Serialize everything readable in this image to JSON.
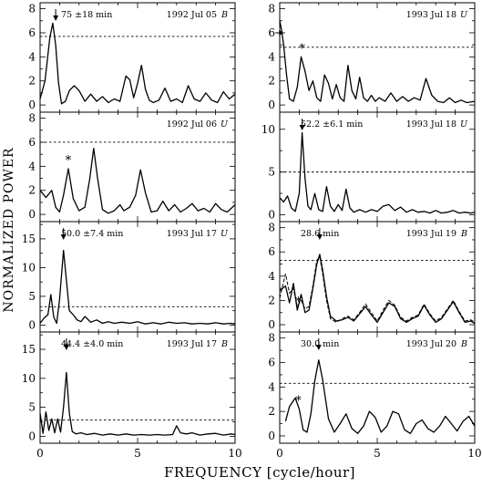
{
  "figure": {
    "ylabel": "NORMALIZED  POWER",
    "xlabel": "FREQUENCY [cycle/hour]"
  },
  "chart_data": [
    {
      "type": "line",
      "column": "left",
      "row": 0,
      "date": "1992 Jul 05",
      "filter": "B",
      "period": "75 ±18 min",
      "xlim": [
        0,
        10
      ],
      "ylim": [
        -0.6,
        8.5
      ],
      "yticks": [
        0,
        2,
        4,
        6,
        8
      ],
      "threshold": 5.7,
      "arrow_x": 0.8,
      "star_x": null,
      "series": [
        {
          "x": [
            0,
            0.25,
            0.5,
            0.65,
            0.8,
            0.95,
            1.1,
            1.3,
            1.5,
            1.75,
            2.0,
            2.3,
            2.6,
            2.9,
            3.2,
            3.5,
            3.8,
            4.1,
            4.4,
            4.6,
            4.8,
            5.0,
            5.2,
            5.4,
            5.6,
            5.8,
            6.1,
            6.4,
            6.7,
            7.0,
            7.3,
            7.6,
            7.9,
            8.2,
            8.5,
            8.8,
            9.1,
            9.4,
            9.7,
            10.0
          ],
          "y": [
            0.5,
            2.0,
            5.6,
            6.8,
            5.0,
            1.8,
            0.1,
            0.3,
            1.2,
            1.6,
            1.2,
            0.3,
            0.9,
            0.3,
            0.7,
            0.2,
            0.5,
            0.3,
            2.4,
            2.1,
            0.6,
            1.8,
            3.3,
            1.3,
            0.4,
            0.2,
            0.4,
            1.4,
            0.3,
            0.5,
            0.2,
            1.6,
            0.5,
            0.3,
            1.0,
            0.4,
            0.2,
            1.1,
            0.5,
            0.9
          ]
        }
      ]
    },
    {
      "type": "line",
      "column": "left",
      "row": 1,
      "date": "1992 Jul 06",
      "filter": "U",
      "period": "",
      "xlim": [
        0,
        10
      ],
      "ylim": [
        -0.6,
        8.5
      ],
      "yticks": [
        0,
        2,
        4,
        6,
        8
      ],
      "threshold": 6.0,
      "arrow_x": null,
      "star_x": 1.45,
      "series": [
        {
          "x": [
            0,
            0.3,
            0.6,
            0.8,
            1.0,
            1.2,
            1.45,
            1.7,
            2.0,
            2.3,
            2.55,
            2.75,
            2.95,
            3.2,
            3.5,
            3.8,
            4.1,
            4.3,
            4.6,
            4.9,
            5.15,
            5.4,
            5.7,
            6.0,
            6.3,
            6.6,
            6.9,
            7.2,
            7.5,
            7.8,
            8.1,
            8.4,
            8.7,
            9.0,
            9.3,
            9.6,
            10.0
          ],
          "y": [
            2.0,
            1.4,
            2.0,
            0.6,
            0.2,
            1.6,
            3.8,
            1.3,
            0.3,
            0.6,
            3.0,
            5.5,
            3.0,
            0.4,
            0.1,
            0.3,
            0.8,
            0.3,
            0.6,
            1.6,
            3.7,
            1.8,
            0.2,
            0.3,
            1.1,
            0.3,
            0.8,
            0.2,
            0.5,
            0.9,
            0.3,
            0.5,
            0.2,
            0.9,
            0.4,
            0.2,
            0.8
          ]
        }
      ]
    },
    {
      "type": "line",
      "column": "left",
      "row": 2,
      "date": "1993 Jul 17",
      "filter": "U",
      "period": "50.0 ±7.4 min",
      "xlim": [
        0,
        10
      ],
      "ylim": [
        -1.2,
        18
      ],
      "yticks": [
        0,
        5,
        10,
        15
      ],
      "threshold": 3.2,
      "arrow_x": 1.2,
      "star_x": null,
      "series": [
        {
          "x": [
            0,
            0.2,
            0.4,
            0.55,
            0.7,
            0.85,
            1.0,
            1.2,
            1.35,
            1.5,
            1.7,
            1.9,
            2.1,
            2.3,
            2.6,
            2.9,
            3.2,
            3.5,
            3.8,
            4.2,
            4.6,
            5.0,
            5.4,
            5.8,
            6.2,
            6.6,
            7.0,
            7.4,
            7.8,
            8.2,
            8.6,
            9.0,
            9.4,
            9.8,
            10.0
          ],
          "y": [
            0.3,
            1.2,
            1.8,
            5.3,
            1.4,
            0.3,
            4.5,
            13.0,
            7.8,
            2.5,
            1.8,
            0.9,
            0.6,
            1.5,
            0.5,
            0.9,
            0.3,
            0.6,
            0.3,
            0.5,
            0.3,
            0.6,
            0.2,
            0.4,
            0.2,
            0.5,
            0.3,
            0.4,
            0.2,
            0.3,
            0.2,
            0.4,
            0.2,
            0.3,
            0.2
          ]
        }
      ]
    },
    {
      "type": "line",
      "column": "left",
      "row": 3,
      "date": "1993 Jul 17",
      "filter": "B",
      "period": "44.4 ±4.0 min",
      "xlim": [
        0,
        10
      ],
      "ylim": [
        -1.2,
        18
      ],
      "yticks": [
        0,
        5,
        10,
        15
      ],
      "threshold": 2.8,
      "arrow_x": 1.35,
      "star_x": null,
      "series": [
        {
          "x": [
            0,
            0.15,
            0.3,
            0.45,
            0.6,
            0.75,
            0.9,
            1.05,
            1.2,
            1.35,
            1.5,
            1.65,
            1.85,
            2.1,
            2.4,
            2.8,
            3.2,
            3.6,
            4.0,
            4.4,
            4.8,
            5.2,
            5.6,
            6.0,
            6.4,
            6.8,
            7.0,
            7.2,
            7.5,
            7.8,
            8.2,
            8.6,
            9.0,
            9.4,
            9.8,
            10.0
          ],
          "y": [
            4.0,
            0.5,
            4.2,
            1.0,
            3.0,
            0.6,
            3.0,
            0.7,
            5.0,
            11.0,
            4.0,
            0.8,
            0.4,
            0.6,
            0.3,
            0.5,
            0.2,
            0.4,
            0.2,
            0.4,
            0.2,
            0.3,
            0.2,
            0.3,
            0.2,
            0.3,
            1.8,
            0.6,
            0.4,
            0.6,
            0.2,
            0.4,
            0.5,
            0.2,
            0.4,
            0.3
          ]
        }
      ]
    },
    {
      "type": "line",
      "column": "right",
      "row": 0,
      "date": "1993 Jul 18",
      "filter": "U",
      "period": "",
      "xlim": [
        0,
        10
      ],
      "ylim": [
        -0.6,
        8.5
      ],
      "yticks": [
        0,
        2,
        4,
        6,
        8
      ],
      "threshold": 4.8,
      "arrow_x": 0.2,
      "arrow_horizontal": true,
      "star_x": 1.15,
      "series": [
        {
          "x": [
            0,
            0.1,
            0.2,
            0.35,
            0.5,
            0.7,
            0.9,
            1.1,
            1.3,
            1.5,
            1.7,
            1.9,
            2.1,
            2.3,
            2.5,
            2.7,
            2.9,
            3.1,
            3.3,
            3.5,
            3.7,
            3.9,
            4.1,
            4.3,
            4.5,
            4.7,
            4.9,
            5.1,
            5.4,
            5.7,
            6.0,
            6.3,
            6.6,
            6.9,
            7.2,
            7.5,
            7.8,
            8.1,
            8.4,
            8.7,
            9.0,
            9.3,
            9.6,
            10.0
          ],
          "y": [
            7.0,
            6.2,
            5.0,
            2.5,
            0.5,
            0.3,
            1.5,
            4.0,
            2.8,
            1.2,
            2.0,
            0.6,
            0.3,
            2.5,
            1.8,
            0.5,
            1.7,
            0.6,
            0.3,
            3.3,
            1.2,
            0.5,
            2.3,
            0.6,
            0.3,
            0.8,
            0.3,
            0.6,
            0.3,
            1.0,
            0.3,
            0.7,
            0.3,
            0.6,
            0.4,
            2.2,
            0.8,
            0.3,
            0.2,
            0.6,
            0.2,
            0.4,
            0.2,
            0.3
          ]
        }
      ]
    },
    {
      "type": "line",
      "column": "right",
      "row": 1,
      "date": "1993 Jul 18",
      "filter": "U",
      "period": "52.2 ±6.1 min",
      "xlim": [
        0,
        10
      ],
      "ylim": [
        -0.8,
        12
      ],
      "yticks": [
        0,
        5,
        10
      ],
      "threshold": 5.0,
      "arrow_x": 1.15,
      "star_x": null,
      "series": [
        {
          "x": [
            0,
            0.2,
            0.4,
            0.6,
            0.8,
            1.0,
            1.15,
            1.3,
            1.45,
            1.6,
            1.8,
            2.0,
            2.2,
            2.4,
            2.6,
            2.8,
            3.0,
            3.2,
            3.4,
            3.6,
            3.8,
            4.1,
            4.4,
            4.7,
            5.0,
            5.3,
            5.6,
            5.9,
            6.2,
            6.5,
            6.8,
            7.1,
            7.4,
            7.7,
            8.0,
            8.3,
            8.6,
            8.9,
            9.2,
            9.5,
            9.8,
            10.0
          ],
          "y": [
            2.0,
            1.5,
            2.2,
            0.8,
            0.4,
            2.5,
            9.6,
            4.2,
            1.0,
            0.6,
            2.5,
            0.6,
            0.4,
            3.3,
            1.0,
            0.4,
            1.2,
            0.5,
            3.0,
            0.8,
            0.3,
            0.6,
            0.3,
            0.6,
            0.4,
            1.0,
            1.2,
            0.5,
            0.9,
            0.3,
            0.6,
            0.3,
            0.4,
            0.2,
            0.5,
            0.2,
            0.3,
            0.5,
            0.2,
            0.3,
            0.2,
            0.3
          ]
        }
      ]
    },
    {
      "type": "line",
      "column": "right",
      "row": 2,
      "date": "1993 Jul 19",
      "filter": "B",
      "period": "28.6 min",
      "xlim": [
        0,
        10
      ],
      "ylim": [
        -0.6,
        8.5
      ],
      "yticks": [
        0,
        2,
        4,
        6,
        8
      ],
      "threshold": 5.3,
      "arrow_x": 2.05,
      "star_x": 0.95,
      "series": [
        {
          "x": [
            0,
            0.3,
            0.5,
            0.7,
            0.9,
            1.1,
            1.3,
            1.5,
            1.7,
            1.9,
            2.05,
            2.2,
            2.4,
            2.6,
            2.9,
            3.2,
            3.5,
            3.8,
            4.1,
            4.4,
            4.7,
            5.0,
            5.3,
            5.6,
            5.9,
            6.2,
            6.5,
            6.8,
            7.1,
            7.4,
            7.7,
            8.0,
            8.3,
            8.6,
            8.9,
            9.2,
            9.5,
            9.8,
            10.0
          ],
          "y": [
            2.8,
            3.2,
            1.8,
            3.4,
            1.2,
            2.5,
            1.0,
            1.2,
            3.0,
            5.0,
            5.8,
            4.5,
            2.3,
            0.7,
            0.3,
            0.4,
            0.6,
            0.3,
            0.9,
            1.5,
            0.8,
            0.2,
            1.0,
            1.8,
            1.5,
            0.5,
            0.2,
            0.5,
            0.7,
            1.6,
            0.8,
            0.2,
            0.5,
            1.2,
            1.9,
            1.0,
            0.2,
            0.3,
            0.1
          ]
        },
        {
          "x": [
            0,
            0.3,
            0.5,
            0.7,
            0.9,
            1.1,
            1.3,
            1.5,
            1.7,
            1.9,
            2.05,
            2.2,
            2.4,
            2.6,
            2.9,
            3.2,
            3.5,
            3.8,
            4.1,
            4.4,
            4.7,
            5.0,
            5.3,
            5.6,
            5.9,
            6.2,
            6.5,
            6.8,
            7.1,
            7.4,
            7.7,
            8.0,
            8.3,
            8.6,
            8.9,
            9.2,
            9.5,
            9.8,
            10.0
          ],
          "y": [
            2.2,
            4.2,
            2.6,
            3.0,
            1.5,
            2.0,
            1.3,
            1.5,
            3.2,
            5.3,
            5.6,
            4.2,
            2.0,
            0.5,
            0.2,
            0.5,
            0.7,
            0.4,
            1.0,
            1.7,
            1.0,
            0.3,
            1.2,
            2.0,
            1.6,
            0.6,
            0.3,
            0.6,
            0.8,
            1.7,
            0.9,
            0.3,
            0.6,
            1.3,
            2.0,
            1.1,
            0.3,
            0.4,
            0.2
          ]
        }
      ]
    },
    {
      "type": "line",
      "column": "right",
      "row": 3,
      "date": "1993 Jul 20",
      "filter": "B",
      "period": "30.0 min",
      "xlim": [
        0,
        10
      ],
      "ylim": [
        -0.6,
        8.5
      ],
      "yticks": [
        0,
        2,
        4,
        6,
        8
      ],
      "threshold": 4.3,
      "arrow_x": 2.0,
      "star_x": 0.95,
      "series": [
        {
          "x": [
            0.3,
            0.5,
            0.8,
            1.0,
            1.2,
            1.4,
            1.6,
            1.8,
            2.0,
            2.2,
            2.5,
            2.8,
            3.1,
            3.4,
            3.7,
            4.0,
            4.3,
            4.6,
            4.9,
            5.2,
            5.5,
            5.8,
            6.1,
            6.4,
            6.7,
            7.0,
            7.3,
            7.6,
            7.9,
            8.2,
            8.5,
            8.8,
            9.1,
            9.4,
            9.7,
            10.0
          ],
          "y": [
            1.2,
            2.4,
            3.1,
            2.2,
            0.5,
            0.3,
            1.8,
            4.5,
            6.2,
            4.6,
            1.4,
            0.3,
            1.0,
            1.8,
            0.6,
            0.2,
            0.8,
            2.0,
            1.5,
            0.3,
            0.8,
            2.0,
            1.8,
            0.5,
            0.2,
            1.0,
            1.3,
            0.6,
            0.3,
            0.8,
            1.6,
            1.0,
            0.4,
            1.2,
            1.6,
            0.8
          ]
        }
      ]
    }
  ]
}
